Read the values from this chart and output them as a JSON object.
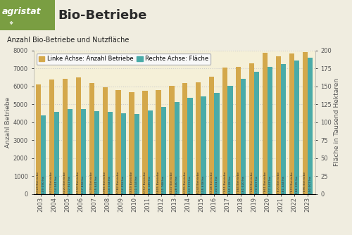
{
  "years": [
    "2003",
    "2004",
    "2005",
    "2006",
    "2007",
    "2008",
    "2009",
    "2010",
    "2011",
    "2012",
    "2013",
    "2014",
    "2015",
    "2016",
    "2017",
    "2018",
    "2019",
    "2020",
    "2021",
    "2022",
    "2023"
  ],
  "betriebe": [
    6124,
    6373,
    6420,
    6510,
    6199,
    5966,
    5782,
    5659,
    5757,
    5805,
    6047,
    6195,
    6244,
    6548,
    7051,
    7084,
    7284,
    7861,
    7670,
    7819,
    7896
  ],
  "flaeche_tsd": [
    109.09,
    114.561,
    117.917,
    117.858,
    115.641,
    114.334,
    112.092,
    111.534,
    116.189,
    121.768,
    128.54,
    133.973,
    135.638,
    140.631,
    150.428,
    161.02,
    170.007,
    177.347,
    181.444,
    186.335,
    190.007
  ],
  "bar_color_betriebe": "#d4a84b",
  "bar_color_flaeche": "#4aaba8",
  "bg_color_plot": "#f5f0d8",
  "bg_color_figure": "#f0ede0",
  "title": "Bio-Betriebe",
  "subtitle": "Anzahl Bio-Betriebe und Nutzfläche",
  "legend_betriebe": "Linke Achse: Anzahl Betriebe",
  "legend_flaeche": "Rechte Achse: Fläche",
  "ylabel_left": "Anzahl Betriebe",
  "ylabel_right": "Fläche in Tausend Hektaren",
  "ylim_left": [
    0,
    8000
  ],
  "ylim_right": [
    0,
    200
  ],
  "yticks_left": [
    0,
    1000,
    2000,
    3000,
    4000,
    5000,
    6000,
    7000,
    8000
  ],
  "yticks_right": [
    0,
    25,
    50,
    75,
    100,
    125,
    150,
    175,
    200
  ],
  "header_bg": "#6b8c3a",
  "header_logo_bg": "#7a9e42",
  "tick_color": "#555555",
  "grid_color": "#cccccc",
  "bar_labels_betriebe": [
    "6124 Betriebe",
    "6373 Betriebe",
    "6420 Betriebe",
    "6510 Betriebe",
    "6199 Betriebe",
    "5966 Betriebe",
    "5782 Betriebe",
    "5659 Betriebe",
    "5757 Betriebe",
    "5805 Betriebe",
    "6047 Betriebe",
    "6195 Betriebe",
    "6244 Betriebe",
    "6548 Betriebe",
    "7051 Betriebe",
    "7084 Betriebe",
    "7284 Betriebe",
    "7861 Betriebe",
    "7670 Betriebe",
    "7819 Betriebe",
    "7896 Betriebe"
  ],
  "bar_labels_flaeche": [
    "109 090 ha",
    "114 561 ha",
    "117 917 ha",
    "117 858 ha",
    "115 641 ha",
    "114 334 ha",
    "112 092 ha",
    "111 534 ha",
    "116 189 ha",
    "121 768 ha",
    "128 540 ha",
    "133 973 ha",
    "135 638 ha",
    "140 631 ha",
    "150 428 ha",
    "161 020 ha",
    "170 007 ha",
    "177 347 ha",
    "181 444 ha",
    "186 335 ha",
    "190 007 ha"
  ]
}
